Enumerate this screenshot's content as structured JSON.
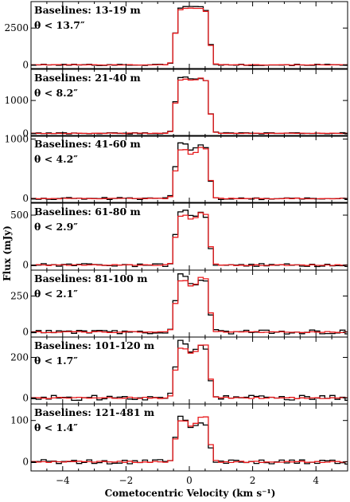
{
  "chart_data": {
    "type": "line",
    "xlabel": "Cometocentric Velocity (km s⁻¹)",
    "ylabel": "Flux (mJy)",
    "xlim": [
      -5,
      5
    ],
    "xticks": [
      -4,
      -2,
      0,
      2,
      4
    ],
    "step_width": 0.16,
    "series_colors": {
      "observed": "#000000",
      "model": "#e8191b"
    },
    "panels": [
      {
        "label": "Baselines: 13-19 m",
        "theta": "θ < 13.7″",
        "ylim": [
          -250,
          4300
        ],
        "yticks": [
          0,
          2500
        ],
        "line_center": 0.1,
        "half_width": 0.55,
        "peak": 3850,
        "obs_peak": 3950,
        "dip": 0.0,
        "asym": 0.0,
        "noise_amp": 45
      },
      {
        "label": "Baselines: 21-40 m",
        "theta": "θ < 8.2″",
        "ylim": [
          -90,
          1950
        ],
        "yticks": [
          0,
          1000
        ],
        "line_center": 0.1,
        "half_width": 0.55,
        "peak": 1680,
        "obs_peak": 1720,
        "dip": 0.04,
        "asym": 0.05,
        "noise_amp": 22
      },
      {
        "label": "Baselines: 41-60 m",
        "theta": "θ < 4.2″",
        "ylim": [
          -65,
          1060
        ],
        "yticks": [
          0,
          1000
        ],
        "line_center": 0.1,
        "half_width": 0.55,
        "peak": 860,
        "obs_peak": 940,
        "dip": 0.14,
        "asym": 0.1,
        "noise_amp": 18
      },
      {
        "label": "Baselines: 61-80 m",
        "theta": "θ < 2.9″",
        "ylim": [
          -50,
          620
        ],
        "yticks": [
          0,
          500
        ],
        "line_center": 0.1,
        "half_width": 0.55,
        "peak": 520,
        "obs_peak": 540,
        "dip": 0.12,
        "asym": 0.12,
        "noise_amp": 15
      },
      {
        "label": "Baselines: 81-100 m",
        "theta": "θ < 2.1″",
        "ylim": [
          -35,
          430
        ],
        "yticks": [
          0,
          250
        ],
        "line_center": 0.1,
        "half_width": 0.55,
        "peak": 375,
        "obs_peak": 385,
        "dip": 0.16,
        "asym": 0.15,
        "noise_amp": 14
      },
      {
        "label": "Baselines: 101-120 m",
        "theta": "θ < 1.7″",
        "ylim": [
          -30,
          300
        ],
        "yticks": [
          0,
          200
        ],
        "line_center": 0.1,
        "half_width": 0.55,
        "peak": 262,
        "obs_peak": 270,
        "dip": 0.18,
        "asym": 0.18,
        "noise_amp": 12
      },
      {
        "label": "Baselines: 121-481 m",
        "theta": "θ < 1.4″",
        "ylim": [
          -22,
          140
        ],
        "yticks": [
          0,
          100
        ],
        "line_center": 0.1,
        "half_width": 0.55,
        "peak": 108,
        "obs_peak": 105,
        "dip": 0.2,
        "asym": 0.22,
        "noise_amp": 5.5
      }
    ]
  }
}
